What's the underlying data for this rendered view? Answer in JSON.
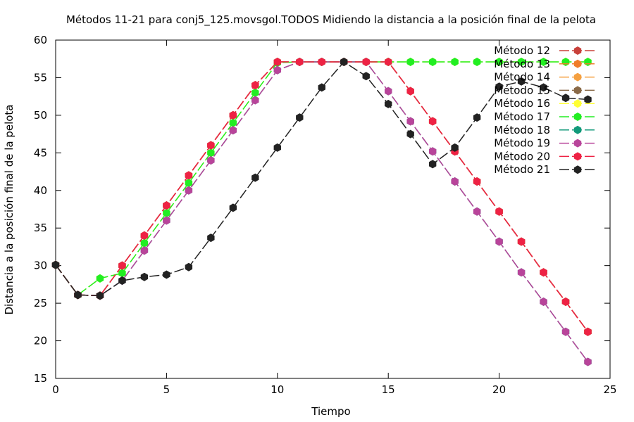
{
  "chart_data": {
    "type": "line",
    "title": "Métodos 11-21 para conj5_125.movsgol.TODOS Midiendo la distancia a la posición final de la pelota",
    "xlabel": "Tiempo",
    "ylabel": "Distancia a la posición final de la pelota",
    "xlim": [
      0,
      25
    ],
    "ylim": [
      15,
      60
    ],
    "xticks": [
      0,
      5,
      10,
      15,
      20,
      25
    ],
    "yticks": [
      15,
      20,
      25,
      30,
      35,
      40,
      45,
      50,
      55,
      60
    ],
    "grid": false,
    "legend_position": "top-right",
    "series": [
      {
        "name": "Método 12",
        "color": "#c8403a",
        "dash": true,
        "x": [
          0,
          1,
          2,
          3,
          4,
          5,
          6,
          7,
          8,
          9,
          10,
          11,
          12,
          13,
          14,
          15,
          16,
          17,
          18,
          19,
          20,
          21,
          22,
          23,
          24
        ],
        "y": [
          30.1,
          26.1,
          26.0,
          30.0,
          34.0,
          38.0,
          42.0,
          46.0,
          50.0,
          54.0,
          57.1,
          57.1,
          57.1,
          57.1,
          57.1,
          57.1,
          53.2,
          49.2,
          45.2,
          41.2,
          37.2,
          33.2,
          29.1,
          25.2,
          21.2
        ]
      },
      {
        "name": "Método 13",
        "color": "#f07d2a",
        "dash": true,
        "x": [
          0,
          1,
          2,
          3,
          4,
          5,
          6,
          7,
          8,
          9,
          10,
          11,
          12,
          13,
          14,
          15,
          16,
          17,
          18,
          19,
          20,
          21,
          22,
          23,
          24
        ],
        "y": [
          30.1,
          26.1,
          26.0,
          30.0,
          34.0,
          38.0,
          42.0,
          46.0,
          50.0,
          54.0,
          57.1,
          57.1,
          57.1,
          57.1,
          57.1,
          57.1,
          53.2,
          49.2,
          45.2,
          41.2,
          37.2,
          33.2,
          29.1,
          25.2,
          21.2
        ]
      },
      {
        "name": "Método 14",
        "color": "#f5a040",
        "dash": true,
        "x": [
          0,
          1,
          2,
          3,
          4,
          5,
          6,
          7,
          8,
          9,
          10,
          11,
          12,
          13,
          14,
          15,
          16,
          17,
          18,
          19,
          20,
          21,
          22,
          23,
          24
        ],
        "y": [
          30.1,
          26.1,
          26.0,
          30.0,
          34.0,
          38.0,
          42.0,
          46.0,
          50.0,
          54.0,
          57.1,
          57.1,
          57.1,
          57.1,
          57.1,
          57.1,
          53.2,
          49.2,
          45.2,
          41.2,
          37.2,
          33.2,
          29.1,
          25.2,
          21.2
        ]
      },
      {
        "name": "Método 15",
        "color": "#8a6a48",
        "dash": true,
        "x": [
          0,
          1,
          2,
          3,
          4,
          5,
          6,
          7,
          8,
          9,
          10,
          11,
          12,
          13,
          14,
          15,
          16,
          17,
          18,
          19,
          20,
          21,
          22,
          23,
          24
        ],
        "y": [
          30.1,
          26.1,
          26.0,
          30.0,
          34.0,
          38.0,
          42.0,
          46.0,
          50.0,
          54.0,
          57.1,
          57.1,
          57.1,
          57.1,
          57.1,
          57.1,
          53.2,
          49.2,
          45.2,
          41.2,
          37.2,
          33.2,
          29.1,
          25.2,
          21.2
        ]
      },
      {
        "name": "Método 16",
        "color": "#ffff33",
        "dash": true,
        "x": [
          0,
          1,
          2,
          3,
          4,
          5,
          6,
          7,
          8,
          9,
          10,
          11,
          12,
          13,
          14,
          15,
          16,
          17,
          18,
          19,
          20,
          21,
          22,
          23,
          24
        ],
        "y": [
          30.1,
          26.1,
          28.3,
          29.0,
          33.0,
          37.0,
          41.0,
          45.0,
          49.0,
          53.0,
          57.0,
          57.1,
          57.1,
          57.1,
          57.1,
          57.1,
          57.1,
          57.1,
          57.1,
          57.1,
          57.1,
          57.1,
          57.1,
          57.1,
          57.1
        ]
      },
      {
        "name": "Método 17",
        "color": "#22ee22",
        "dash": true,
        "x": [
          0,
          1,
          2,
          3,
          4,
          5,
          6,
          7,
          8,
          9,
          10,
          11,
          12,
          13,
          14,
          15,
          16,
          17,
          18,
          19,
          20,
          21,
          22,
          23,
          24
        ],
        "y": [
          30.1,
          26.1,
          28.3,
          29.0,
          33.0,
          37.0,
          41.0,
          45.0,
          49.0,
          53.0,
          57.0,
          57.1,
          57.1,
          57.1,
          57.1,
          57.1,
          57.1,
          57.1,
          57.1,
          57.1,
          57.1,
          57.1,
          57.1,
          57.1,
          57.1
        ]
      },
      {
        "name": "Método 18",
        "color": "#129a7a",
        "dash": true,
        "x": [
          0,
          1,
          2,
          3,
          4,
          5,
          6,
          7,
          8,
          9,
          10,
          11,
          12,
          13,
          14,
          15,
          16,
          17,
          18,
          19,
          20,
          21,
          22,
          23,
          24
        ],
        "y": [
          30.1,
          26.1,
          26.0,
          28.0,
          32.0,
          36.0,
          40.0,
          44.0,
          48.0,
          52.0,
          56.0,
          57.1,
          57.1,
          57.1,
          57.1,
          53.2,
          49.2,
          45.2,
          41.2,
          37.2,
          33.2,
          29.1,
          25.2,
          21.2,
          17.2
        ]
      },
      {
        "name": "Método 19",
        "color": "#b8449a",
        "dash": true,
        "x": [
          0,
          1,
          2,
          3,
          4,
          5,
          6,
          7,
          8,
          9,
          10,
          11,
          12,
          13,
          14,
          15,
          16,
          17,
          18,
          19,
          20,
          21,
          22,
          23,
          24
        ],
        "y": [
          30.1,
          26.1,
          26.0,
          28.0,
          32.0,
          36.0,
          40.0,
          44.0,
          48.0,
          52.0,
          56.0,
          57.1,
          57.1,
          57.1,
          57.1,
          53.2,
          49.2,
          45.2,
          41.2,
          37.2,
          33.2,
          29.1,
          25.2,
          21.2,
          17.2
        ]
      },
      {
        "name": "Método 20",
        "color": "#ee2244",
        "dash": true,
        "x": [
          0,
          1,
          2,
          3,
          4,
          5,
          6,
          7,
          8,
          9,
          10,
          11,
          12,
          13,
          14,
          15,
          16,
          17,
          18,
          19,
          20,
          21,
          22,
          23,
          24
        ],
        "y": [
          30.1,
          26.1,
          26.0,
          30.0,
          34.0,
          38.0,
          42.0,
          46.0,
          50.0,
          54.0,
          57.1,
          57.1,
          57.1,
          57.1,
          57.1,
          57.1,
          53.2,
          49.2,
          45.2,
          41.2,
          37.2,
          33.2,
          29.1,
          25.2,
          21.2
        ]
      },
      {
        "name": "Método 21",
        "color": "#222222",
        "dash": true,
        "x": [
          0,
          1,
          2,
          3,
          4,
          5,
          6,
          7,
          8,
          9,
          10,
          11,
          12,
          13,
          14,
          15,
          16,
          17,
          18,
          19,
          20,
          21,
          22,
          23,
          24
        ],
        "y": [
          30.1,
          26.1,
          26.0,
          28.0,
          28.5,
          28.8,
          29.8,
          33.7,
          37.7,
          41.7,
          45.7,
          49.7,
          53.7,
          57.1,
          55.2,
          51.5,
          47.5,
          43.5,
          45.7,
          49.7,
          53.8,
          54.5,
          53.7,
          52.3,
          52.1
        ]
      }
    ]
  }
}
